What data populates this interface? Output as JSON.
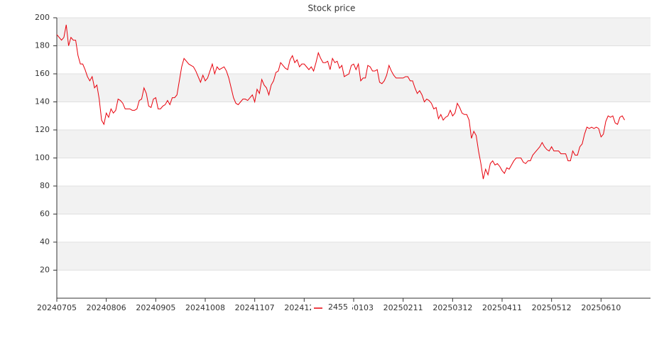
{
  "chart_data": {
    "type": "line",
    "title": "Stock price",
    "categories": [
      "20240705",
      null,
      null,
      null,
      null,
      null,
      null,
      null,
      null,
      null,
      null,
      null,
      null,
      null,
      null,
      null,
      null,
      null,
      null,
      null,
      null,
      "20240806",
      null,
      null,
      null,
      null,
      null,
      null,
      null,
      null,
      null,
      null,
      null,
      null,
      null,
      null,
      null,
      null,
      null,
      null,
      null,
      null,
      "20240905",
      null,
      null,
      null,
      null,
      null,
      null,
      null,
      null,
      null,
      null,
      null,
      null,
      null,
      null,
      null,
      null,
      null,
      null,
      null,
      null,
      "20241008",
      null,
      null,
      null,
      null,
      null,
      null,
      null,
      null,
      null,
      null,
      null,
      null,
      null,
      null,
      null,
      null,
      null,
      null,
      null,
      null,
      "20241107",
      null,
      null,
      null,
      null,
      null,
      null,
      null,
      null,
      null,
      null,
      null,
      null,
      null,
      null,
      null,
      null,
      null,
      null,
      null,
      null,
      "20241206",
      null,
      null,
      null,
      null,
      null,
      null,
      null,
      null,
      null,
      null,
      null,
      null,
      null,
      null,
      null,
      null,
      null,
      null,
      null,
      null,
      "20250103",
      null,
      null,
      null,
      null,
      null,
      null,
      null,
      null,
      null,
      null,
      null,
      null,
      null,
      null,
      null,
      null,
      null,
      null,
      null,
      null,
      "20250211",
      null,
      null,
      null,
      null,
      null,
      null,
      null,
      null,
      null,
      null,
      null,
      null,
      null,
      null,
      null,
      null,
      null,
      null,
      null,
      null,
      "20250312",
      null,
      null,
      null,
      null,
      null,
      null,
      null,
      null,
      null,
      null,
      null,
      null,
      null,
      null,
      null,
      null,
      null,
      null,
      null,
      null,
      "20250411",
      null,
      null,
      null,
      null,
      null,
      null,
      null,
      null,
      null,
      null,
      null,
      null,
      null,
      null,
      null,
      null,
      null,
      null,
      null,
      null,
      "20250512",
      null,
      null,
      null,
      null,
      null,
      null,
      null,
      null,
      null,
      null,
      null,
      null,
      null,
      null,
      null,
      null,
      null,
      null,
      null,
      null,
      "20250610",
      null,
      null,
      null,
      null,
      null,
      null,
      null,
      null,
      null,
      null
    ],
    "series": [
      {
        "name": "2455",
        "color": "#e8000b",
        "values": [
          188,
          186,
          184,
          186,
          195,
          180,
          186,
          184,
          184,
          173,
          167,
          167,
          163,
          158,
          155,
          158,
          150,
          152,
          142,
          127,
          124,
          132,
          129,
          135,
          132,
          134,
          142,
          141,
          139,
          135,
          135,
          135,
          134,
          134,
          135,
          141,
          142,
          150,
          146,
          137,
          136,
          142,
          143,
          135,
          135,
          137,
          138,
          141,
          138,
          143,
          143,
          145,
          155,
          165,
          171,
          169,
          167,
          166,
          165,
          162,
          158,
          154,
          159,
          155,
          157,
          162,
          167,
          160,
          165,
          163,
          164,
          165,
          162,
          157,
          150,
          143,
          139,
          138,
          140,
          142,
          142,
          141,
          143,
          145,
          140,
          149,
          146,
          156,
          152,
          150,
          145,
          152,
          155,
          161,
          162,
          168,
          166,
          164,
          163,
          170,
          173,
          168,
          170,
          165,
          167,
          167,
          165,
          163,
          165,
          162,
          168,
          175,
          171,
          168,
          168,
          169,
          163,
          171,
          168,
          169,
          164,
          166,
          158,
          159,
          160,
          166,
          167,
          163,
          167,
          155,
          157,
          157,
          166,
          165,
          162,
          162,
          163,
          154,
          153,
          155,
          159,
          166,
          162,
          159,
          157,
          157,
          157,
          157,
          158,
          158,
          155,
          155,
          150,
          146,
          148,
          145,
          140,
          142,
          141,
          139,
          135,
          136,
          128,
          131,
          127,
          129,
          130,
          134,
          130,
          132,
          139,
          136,
          132,
          131,
          131,
          127,
          114,
          119,
          116,
          105,
          96,
          85,
          92,
          88,
          96,
          98,
          95,
          96,
          94,
          91,
          89,
          93,
          92,
          95,
          98,
          100,
          100,
          100,
          97,
          96,
          98,
          98,
          102,
          104,
          106,
          108,
          111,
          108,
          106,
          105,
          108,
          105,
          105,
          105,
          103,
          103,
          103,
          98,
          98,
          105,
          102,
          102,
          108,
          110,
          117,
          122,
          121,
          122,
          121,
          122,
          121,
          115,
          117,
          126,
          130,
          129,
          130,
          125,
          124,
          129,
          130,
          127
        ]
      }
    ],
    "ylim": [
      0,
      200
    ],
    "yticks": [
      20,
      40,
      60,
      80,
      100,
      120,
      140,
      160,
      180,
      200
    ],
    "grid": true,
    "legend": "bottom"
  }
}
